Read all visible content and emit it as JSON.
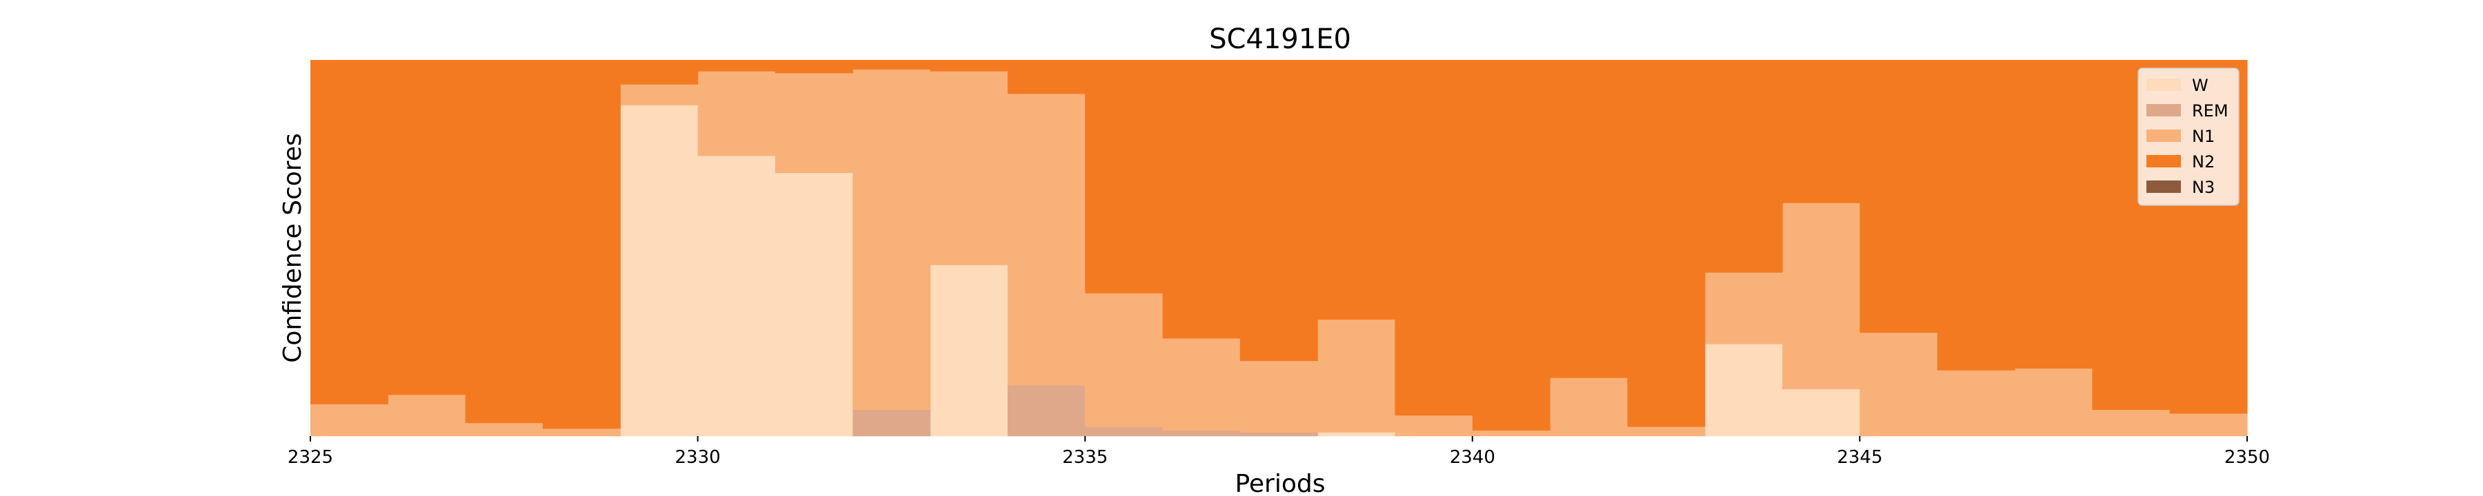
{
  "chart_data": {
    "type": "area",
    "stacked": true,
    "step": true,
    "title": "SC4191E0",
    "xlabel": "Periods",
    "ylabel": "Confidence Scores",
    "xlim": [
      2325,
      2350
    ],
    "ylim": [
      0,
      1
    ],
    "xticks": [
      2325,
      2330,
      2335,
      2340,
      2345,
      2350
    ],
    "xtick_labels": [
      "2325",
      "2330",
      "2335",
      "2340",
      "2345",
      "2350"
    ],
    "yticks_visible": false,
    "grid": false,
    "legend_position": "upper right",
    "x": [
      2325,
      2326,
      2327,
      2328,
      2329,
      2330,
      2331,
      2332,
      2333,
      2334,
      2335,
      2336,
      2337,
      2338,
      2339,
      2340,
      2341,
      2342,
      2343,
      2344,
      2345,
      2346,
      2347,
      2348,
      2349
    ],
    "series": [
      {
        "name": "W",
        "color": "#fddbbb",
        "values": [
          0.0,
          0.0,
          0.0,
          0.0,
          0.88,
          0.745,
          0.7,
          0.0,
          0.455,
          0.0,
          0.0,
          0.0,
          0.0,
          0.01,
          0.0,
          0.0,
          0.0,
          0.0,
          0.245,
          0.125,
          0.0,
          0.0,
          0.0,
          0.0,
          0.0
        ]
      },
      {
        "name": "REM",
        "color": "#dfa88a",
        "values": [
          0.0,
          0.0,
          0.0,
          0.0,
          0.0,
          0.0,
          0.0,
          0.07,
          0.0,
          0.135,
          0.025,
          0.015,
          0.01,
          0.0,
          0.0,
          0.0,
          0.0,
          0.0,
          0.0,
          0.0,
          0.0,
          0.0,
          0.0,
          0.0,
          0.0
        ]
      },
      {
        "name": "N1",
        "color": "#f9b17a",
        "values": [
          0.085,
          0.11,
          0.035,
          0.02,
          0.055,
          0.225,
          0.265,
          0.905,
          0.515,
          0.775,
          0.355,
          0.245,
          0.19,
          0.3,
          0.055,
          0.015,
          0.155,
          0.025,
          0.19,
          0.495,
          0.275,
          0.175,
          0.18,
          0.07,
          0.06
        ]
      },
      {
        "name": "N2",
        "color": "#f47a22",
        "values": [
          0.915,
          0.89,
          0.965,
          0.98,
          0.065,
          0.03,
          0.035,
          0.025,
          0.03,
          0.09,
          0.62,
          0.74,
          0.8,
          0.69,
          0.945,
          0.985,
          0.845,
          0.975,
          0.565,
          0.38,
          0.725,
          0.825,
          0.82,
          0.93,
          0.94
        ]
      },
      {
        "name": "N3",
        "color": "#8c5a3c",
        "values": [
          0.0,
          0.0,
          0.0,
          0.0,
          0.0,
          0.0,
          0.0,
          0.0,
          0.0,
          0.0,
          0.0,
          0.0,
          0.0,
          0.0,
          0.0,
          0.0,
          0.0,
          0.0,
          0.0,
          0.0,
          0.0,
          0.0,
          0.0,
          0.0,
          0.0
        ]
      }
    ]
  }
}
